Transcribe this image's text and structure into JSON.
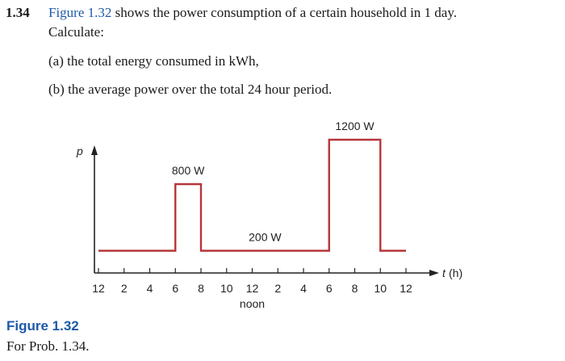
{
  "problem": {
    "number": "1.34",
    "figure_ref": "Figure 1.32",
    "statement_rest": " shows the power consumption of a certain household in 1 day.",
    "calculate": "Calculate:",
    "part_a": "(a) the total energy consumed in kWh,",
    "part_b": "(b) the average power over the total 24 hour period."
  },
  "chart_data": {
    "type": "line",
    "title": "",
    "y_axis_symbol": "p",
    "x_axis_symbol": "t",
    "x_axis_unit": "(h)",
    "tick_labels": [
      "12",
      "2",
      "4",
      "6",
      "8",
      "10",
      "12",
      "2",
      "4",
      "6",
      "8",
      "10",
      "12"
    ],
    "tick_hours": [
      0,
      2,
      4,
      6,
      8,
      10,
      12,
      14,
      16,
      18,
      20,
      22,
      24
    ],
    "noon_label": "noon",
    "noon_hour": 12,
    "series": [
      {
        "x": [
          0,
          6,
          6,
          8,
          8,
          18,
          18,
          22,
          22,
          24
        ],
        "y": [
          200,
          200,
          800,
          800,
          200,
          200,
          1200,
          1200,
          200,
          200
        ],
        "color": "#b5363a"
      }
    ],
    "annotations": [
      {
        "text": "800 W",
        "hour": 7,
        "value": 800
      },
      {
        "text": "200 W",
        "hour": 13,
        "value": 200
      },
      {
        "text": "1200 W",
        "hour": 20,
        "value": 1200
      }
    ]
  },
  "figure_caption": {
    "title": "Figure 1.32",
    "text": "For Prob. 1.34."
  }
}
